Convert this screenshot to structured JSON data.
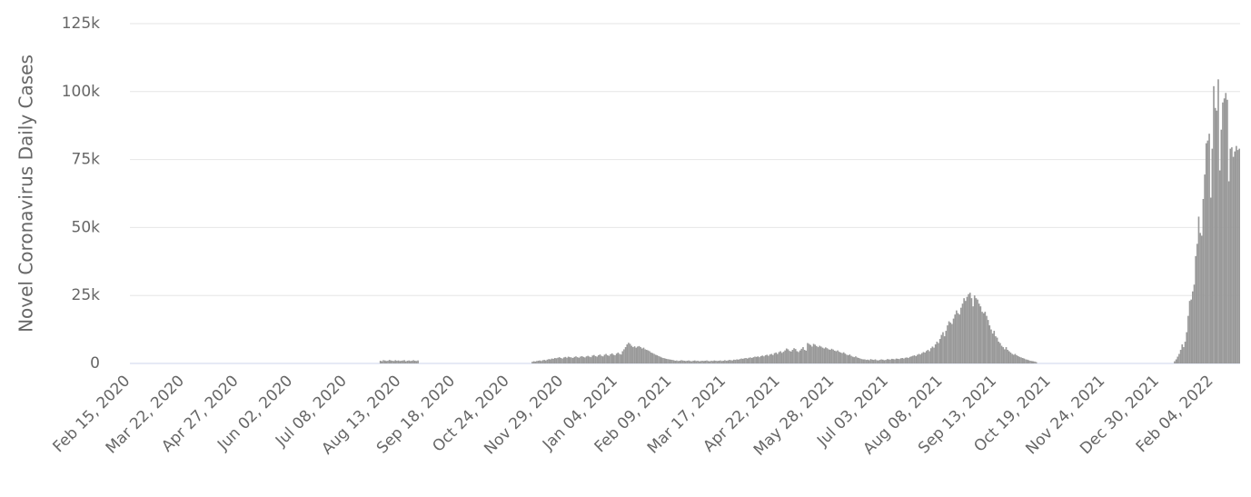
{
  "chart_data": {
    "type": "bar",
    "y_label": "Novel Coronavirus Daily Cases",
    "color": "#999999",
    "grid": true,
    "ylim": [
      0,
      125000
    ],
    "yticks": [
      0,
      {
        "value": 25000,
        "label": "25k"
      },
      {
        "value": 50000,
        "label": "50k"
      },
      {
        "value": 75000,
        "label": "75k"
      },
      {
        "value": 100000,
        "label": "100k"
      },
      {
        "value": 125000,
        "label": "125k"
      }
    ],
    "categories": [
      "Feb 15, 2020",
      null,
      null,
      null,
      null,
      null,
      null,
      null,
      null,
      null,
      null,
      null,
      null,
      null,
      null,
      null,
      null,
      null,
      null,
      null,
      null,
      null,
      null,
      null,
      null,
      null,
      null,
      null,
      null,
      null,
      null,
      null,
      null,
      null,
      null,
      null,
      "Mar 22, 2020",
      null,
      null,
      null,
      null,
      null,
      null,
      null,
      null,
      null,
      null,
      null,
      null,
      null,
      null,
      null,
      null,
      null,
      null,
      null,
      null,
      null,
      null,
      null,
      null,
      null,
      null,
      null,
      null,
      null,
      null,
      null,
      null,
      null,
      null,
      null,
      "Apr 27, 2020",
      null,
      null,
      null,
      null,
      null,
      null,
      null,
      null,
      null,
      null,
      null,
      null,
      null,
      null,
      null,
      null,
      null,
      null,
      null,
      null,
      null,
      null,
      null,
      null,
      null,
      null,
      null,
      null,
      null,
      null,
      null,
      null,
      null,
      null,
      null,
      "Jun 02, 2020",
      null,
      null,
      null,
      null,
      null,
      null,
      null,
      null,
      null,
      null,
      null,
      null,
      null,
      null,
      null,
      null,
      null,
      null,
      null,
      null,
      null,
      null,
      null,
      null,
      null,
      null,
      null,
      null,
      null,
      null,
      null,
      null,
      null,
      null,
      null,
      "Jul 08, 2020",
      null,
      null,
      null,
      null,
      null,
      null,
      null,
      null,
      null,
      null,
      null,
      null,
      null,
      null,
      null,
      null,
      null,
      null,
      null,
      null,
      null,
      null,
      null,
      null,
      null,
      null,
      null,
      null,
      null,
      null,
      null,
      null,
      null,
      null,
      null,
      "Aug 13, 2020",
      null,
      null,
      null,
      null,
      null,
      null,
      null,
      null,
      null,
      null,
      null,
      null,
      null,
      null,
      null,
      null,
      null,
      null,
      null,
      null,
      null,
      null,
      null,
      null,
      null,
      null,
      null,
      null,
      null,
      null,
      null,
      null,
      null,
      null,
      null,
      "Sep 18, 2020",
      null,
      null,
      null,
      null,
      null,
      null,
      null,
      null,
      null,
      null,
      null,
      null,
      null,
      null,
      null,
      null,
      null,
      null,
      null,
      null,
      null,
      null,
      null,
      null,
      null,
      null,
      null,
      null,
      null,
      null,
      null,
      null,
      null,
      null,
      null,
      "Oct 24, 2020",
      null,
      null,
      null,
      null,
      null,
      null,
      null,
      null,
      null,
      null,
      null,
      null,
      null,
      null,
      null,
      null,
      null,
      null,
      null,
      null,
      null,
      null,
      null,
      null,
      null,
      null,
      null,
      null,
      null,
      null,
      null,
      null,
      null,
      null,
      null,
      "Nov 29, 2020",
      null,
      null,
      null,
      null,
      null,
      null,
      null,
      null,
      null,
      null,
      null,
      null,
      null,
      null,
      null,
      null,
      null,
      null,
      null,
      null,
      null,
      null,
      null,
      null,
      null,
      null,
      null,
      null,
      null,
      null,
      null,
      null,
      null,
      null,
      null,
      "Jan 04, 2021",
      null,
      null,
      null,
      null,
      null,
      null,
      null,
      null,
      null,
      null,
      null,
      null,
      null,
      null,
      null,
      null,
      null,
      null,
      null,
      null,
      null,
      null,
      null,
      null,
      null,
      null,
      null,
      null,
      null,
      null,
      null,
      null,
      null,
      null,
      null,
      "Feb 09, 2021",
      null,
      null,
      null,
      null,
      null,
      null,
      null,
      null,
      null,
      null,
      null,
      null,
      null,
      null,
      null,
      null,
      null,
      null,
      null,
      null,
      null,
      null,
      null,
      null,
      null,
      null,
      null,
      null,
      null,
      null,
      null,
      null,
      null,
      null,
      null,
      "Mar 17, 2021",
      null,
      null,
      null,
      null,
      null,
      null,
      null,
      null,
      null,
      null,
      null,
      null,
      null,
      null,
      null,
      null,
      null,
      null,
      null,
      null,
      null,
      null,
      null,
      null,
      null,
      null,
      null,
      null,
      null,
      null,
      null,
      null,
      null,
      null,
      null,
      "Apr 22, 2021",
      null,
      null,
      null,
      null,
      null,
      null,
      null,
      null,
      null,
      null,
      null,
      null,
      null,
      null,
      null,
      null,
      null,
      null,
      null,
      null,
      null,
      null,
      null,
      null,
      null,
      null,
      null,
      null,
      null,
      null,
      null,
      null,
      null,
      null,
      null,
      "May 28, 2021",
      null,
      null,
      null,
      null,
      null,
      null,
      null,
      null,
      null,
      null,
      null,
      null,
      null,
      null,
      null,
      null,
      null,
      null,
      null,
      null,
      null,
      null,
      null,
      null,
      null,
      null,
      null,
      null,
      null,
      null,
      null,
      null,
      null,
      null,
      null,
      "Jul 03, 2021",
      null,
      null,
      null,
      null,
      null,
      null,
      null,
      null,
      null,
      null,
      null,
      null,
      null,
      null,
      null,
      null,
      null,
      null,
      null,
      null,
      null,
      null,
      null,
      null,
      null,
      null,
      null,
      null,
      null,
      null,
      null,
      null,
      null,
      null,
      null,
      "Aug 08, 2021",
      null,
      null,
      null,
      null,
      null,
      null,
      null,
      null,
      null,
      null,
      null,
      null,
      null,
      null,
      null,
      null,
      null,
      null,
      null,
      null,
      null,
      null,
      null,
      null,
      null,
      null,
      null,
      null,
      null,
      null,
      null,
      null,
      null,
      null,
      null,
      "Sep 13, 2021",
      null,
      null,
      null,
      null,
      null,
      null,
      null,
      null,
      null,
      null,
      null,
      null,
      null,
      null,
      null,
      null,
      null,
      null,
      null,
      null,
      null,
      null,
      null,
      null,
      null,
      null,
      null,
      null,
      null,
      null,
      null,
      null,
      null,
      null,
      null,
      "Oct 19, 2021",
      null,
      null,
      null,
      null,
      null,
      null,
      null,
      null,
      null,
      null,
      null,
      null,
      null,
      null,
      null,
      null,
      null,
      null,
      null,
      null,
      null,
      null,
      null,
      null,
      null,
      null,
      null,
      null,
      null,
      null,
      null,
      null,
      null,
      null,
      null,
      "Nov 24, 2021",
      null,
      null,
      null,
      null,
      null,
      null,
      null,
      null,
      null,
      null,
      null,
      null,
      null,
      null,
      null,
      null,
      null,
      null,
      null,
      null,
      null,
      null,
      null,
      null,
      null,
      null,
      null,
      null,
      null,
      null,
      null,
      null,
      null,
      null,
      null,
      "Dec 30, 2021",
      null,
      null,
      null,
      null,
      null,
      null,
      null,
      null,
      null,
      null,
      null,
      null,
      null,
      null,
      null,
      null,
      null,
      null,
      null,
      null,
      null,
      null,
      null,
      null,
      null,
      null,
      null,
      null,
      null,
      null,
      null,
      null,
      null,
      null,
      null,
      "Feb 04, 2022",
      null,
      null,
      null,
      null,
      null,
      null,
      null,
      null,
      null,
      null,
      null,
      null,
      null,
      null,
      null,
      null,
      null
    ],
    "values": [
      0,
      0,
      0,
      0,
      0,
      0,
      0,
      0,
      0,
      0,
      0,
      0,
      0,
      0,
      0,
      0,
      0,
      0,
      0,
      0,
      0,
      0,
      0,
      0,
      0,
      0,
      0,
      0,
      0,
      0,
      0,
      0,
      0,
      0,
      0,
      0,
      0,
      0,
      0,
      0,
      0,
      0,
      0,
      0,
      0,
      0,
      0,
      0,
      0,
      0,
      0,
      0,
      0,
      0,
      0,
      0,
      0,
      0,
      0,
      0,
      0,
      0,
      0,
      0,
      0,
      0,
      0,
      0,
      0,
      0,
      0,
      0,
      0,
      0,
      0,
      0,
      0,
      0,
      0,
      0,
      0,
      0,
      0,
      0,
      0,
      0,
      0,
      0,
      0,
      0,
      0,
      0,
      0,
      0,
      0,
      0,
      0,
      0,
      0,
      0,
      0,
      0,
      0,
      0,
      0,
      0,
      0,
      0,
      0,
      0,
      0,
      0,
      0,
      0,
      0,
      0,
      0,
      0,
      0,
      0,
      0,
      0,
      0,
      0,
      0,
      0,
      0,
      0,
      0,
      0,
      0,
      0,
      0,
      0,
      0,
      0,
      0,
      0,
      0,
      0,
      0,
      0,
      0,
      0,
      0,
      0,
      0,
      0,
      0,
      0,
      0,
      0,
      0,
      0,
      0,
      0,
      0,
      0,
      0,
      0,
      0,
      0,
      0,
      0,
      0,
      0,
      1000,
      800,
      1200,
      1100,
      900,
      1000,
      1300,
      1100,
      1000,
      900,
      1200,
      1000,
      1100,
      900,
      1000,
      1100,
      1200,
      800,
      1000,
      1100,
      900,
      1000,
      1200,
      1000,
      900,
      1100,
      0,
      0,
      0,
      0,
      0,
      0,
      0,
      0,
      0,
      0,
      0,
      0,
      0,
      0,
      0,
      0,
      0,
      0,
      0,
      0,
      0,
      0,
      0,
      0,
      0,
      0,
      0,
      0,
      0,
      0,
      0,
      0,
      0,
      0,
      0,
      0,
      0,
      0,
      0,
      0,
      0,
      0,
      0,
      0,
      0,
      0,
      0,
      0,
      0,
      0,
      0,
      0,
      0,
      0,
      0,
      0,
      0,
      0,
      0,
      0,
      0,
      0,
      0,
      0,
      0,
      0,
      0,
      0,
      0,
      0,
      0,
      0,
      0,
      0,
      0,
      600,
      800,
      700,
      900,
      1000,
      1100,
      900,
      1200,
      1300,
      1100,
      1400,
      1600,
      1500,
      1800,
      1700,
      2000,
      1900,
      2100,
      2300,
      2000,
      1800,
      2200,
      2400,
      2100,
      2500,
      2300,
      2200,
      2000,
      2400,
      2600,
      2300,
      2100,
      2500,
      2700,
      2400,
      2200,
      2600,
      2800,
      2500,
      2300,
      2900,
      3100,
      2700,
      2500,
      3000,
      3300,
      2800,
      2600,
      3200,
      3500,
      3000,
      2800,
      3400,
      3700,
      3200,
      3000,
      3600,
      4000,
      3500,
      3300,
      4500,
      5200,
      6000,
      7000,
      7600,
      7200,
      6500,
      6000,
      6300,
      5800,
      6200,
      6400,
      6000,
      5500,
      5800,
      5200,
      5000,
      4800,
      4500,
      4000,
      3800,
      3500,
      3200,
      3000,
      2700,
      2500,
      2200,
      2000,
      1900,
      1700,
      1600,
      1500,
      1400,
      1300,
      1200,
      1000,
      1100,
      900,
      1000,
      1200,
      1100,
      1000,
      900,
      1000,
      1100,
      900,
      800,
      1000,
      1100,
      900,
      1000,
      800,
      900,
      1000,
      900,
      1000,
      1100,
      900,
      800,
      1000,
      900,
      1100,
      1000,
      900,
      1000,
      1100,
      900,
      1000,
      1200,
      1000,
      1100,
      1300,
      1200,
      1100,
      1400,
      1300,
      1500,
      1400,
      1600,
      1800,
      1700,
      1900,
      2000,
      1800,
      2100,
      2200,
      2000,
      2300,
      2500,
      2400,
      2600,
      2300,
      2700,
      2900,
      2600,
      3000,
      3200,
      2800,
      3300,
      3500,
      3100,
      3800,
      4000,
      3500,
      4200,
      4500,
      3900,
      4300,
      4800,
      5500,
      5200,
      4600,
      4400,
      5000,
      5600,
      5300,
      4500,
      4200,
      4800,
      5400,
      6000,
      5000,
      4700,
      7500,
      7200,
      6800,
      6200,
      7200,
      6900,
      6400,
      6000,
      6500,
      6200,
      5800,
      5500,
      5900,
      5600,
      5200,
      5000,
      5400,
      5100,
      4700,
      4500,
      4800,
      4300,
      4000,
      3800,
      4100,
      3600,
      3200,
      3000,
      3300,
      2800,
      2500,
      2300,
      2600,
      2200,
      2000,
      1800,
      1600,
      1500,
      1500,
      1300,
      1400,
      1200,
      1600,
      1400,
      1300,
      1500,
      1200,
      1100,
      1300,
      1500,
      1400,
      1200,
      1300,
      1600,
      1500,
      1400,
      1700,
      1600,
      1500,
      1800,
      1700,
      1600,
      1900,
      2000,
      1800,
      2100,
      2200,
      2000,
      2400,
      2600,
      2800,
      3000,
      2700,
      3200,
      3500,
      3300,
      3800,
      4200,
      4000,
      4600,
      5000,
      4500,
      5600,
      6200,
      5800,
      7000,
      8000,
      7500,
      9000,
      10500,
      11500,
      10000,
      12000,
      14000,
      15500,
      15000,
      14500,
      16500,
      18000,
      19500,
      18500,
      18000,
      20500,
      22000,
      24000,
      23000,
      24500,
      25500,
      26000,
      24000,
      21000,
      25000,
      24000,
      23500,
      22000,
      21000,
      19000,
      18500,
      19000,
      17500,
      16000,
      14000,
      12500,
      11000,
      12000,
      10000,
      9500,
      8000,
      7500,
      6500,
      6000,
      5200,
      6000,
      5000,
      4500,
      4000,
      3500,
      3200,
      3500,
      3000,
      2700,
      2400,
      2200,
      2000,
      1800,
      1500,
      1400,
      1200,
      1000,
      900,
      800,
      700,
      500,
      0,
      0,
      0,
      0,
      0,
      0,
      0,
      0,
      0,
      0,
      0,
      0,
      0,
      0,
      0,
      0,
      0,
      0,
      0,
      0,
      0,
      0,
      0,
      0,
      0,
      0,
      0,
      0,
      0,
      0,
      0,
      0,
      0,
      0,
      0,
      0,
      0,
      0,
      0,
      0,
      0,
      0,
      0,
      0,
      0,
      0,
      0,
      0,
      0,
      0,
      0,
      0,
      0,
      0,
      0,
      0,
      0,
      0,
      0,
      0,
      0,
      0,
      0,
      0,
      0,
      0,
      0,
      0,
      0,
      0,
      0,
      0,
      0,
      0,
      0,
      0,
      0,
      0,
      0,
      0,
      0,
      0,
      0,
      0,
      0,
      0,
      0,
      0,
      0,
      0,
      0,
      800,
      1500,
      2500,
      3500,
      5000,
      7000,
      6000,
      8000,
      11500,
      17500,
      23000,
      23500,
      26500,
      29000,
      39500,
      44000,
      54000,
      48000,
      47000,
      60500,
      69500,
      81000,
      82000,
      84500,
      61000,
      79000,
      102000,
      94000,
      93000,
      104500,
      71000,
      86000,
      96000,
      97500,
      99500,
      97000,
      67000,
      79000,
      79500,
      76000,
      78000,
      80000,
      78500,
      79000
    ]
  }
}
